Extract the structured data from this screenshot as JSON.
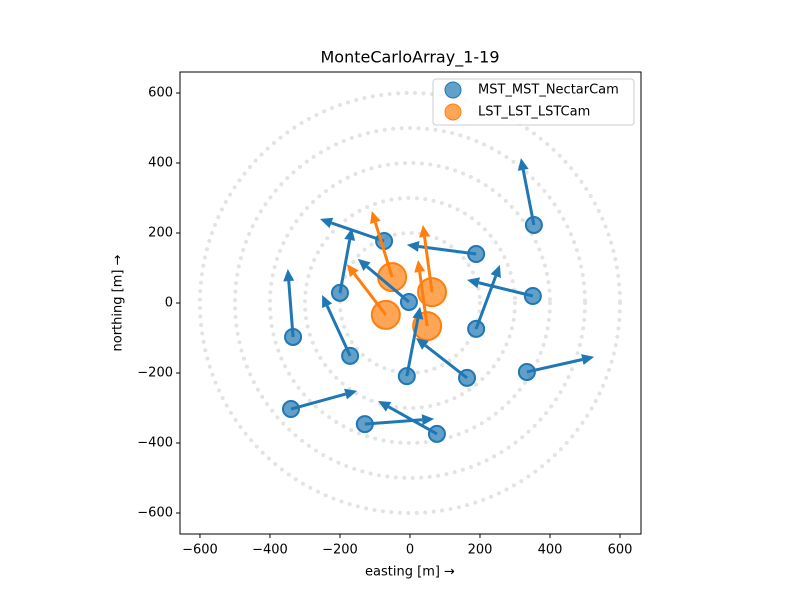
{
  "chart_data": {
    "type": "quiver-scatter",
    "title": "MonteCarloArray_1-19",
    "x_label": "easting [m] →",
    "y_label": "northing [m] →",
    "xlim": [
      -657,
      660
    ],
    "ylim": [
      -660,
      660
    ],
    "xticks": [
      {
        "value": -600,
        "label": "−600"
      },
      {
        "value": -400,
        "label": "−400"
      },
      {
        "value": -200,
        "label": "−200"
      },
      0,
      200,
      400,
      600
    ],
    "yticks": [
      {
        "value": -600,
        "label": "−600"
      },
      {
        "value": -400,
        "label": "−400"
      },
      {
        "value": -200,
        "label": "−200"
      },
      0,
      200,
      400,
      600
    ],
    "rings": [
      200,
      300,
      400,
      500,
      600
    ],
    "legend": "upper right",
    "series": [
      {
        "name": "MST_MST_NectarCam",
        "color": "#1f77b4",
        "x": [
          354,
          -74,
          -200,
          -3,
          189,
          351,
          189,
          -334,
          -171,
          -9,
          163,
          334,
          -340,
          -129,
          77
        ],
        "y": [
          223,
          177,
          29,
          3,
          140,
          20,
          -74,
          -97,
          -151,
          -209,
          -214,
          -197,
          -303,
          -346,
          -374
        ],
        "u": [
          -37,
          -183,
          34,
          -146,
          -198,
          -188,
          68,
          -15,
          -80,
          38,
          -146,
          192,
          189,
          198,
          -168
        ],
        "v": [
          191,
          63,
          185,
          123,
          26,
          46,
          183,
          194,
          174,
          198,
          114,
          43,
          52,
          15,
          94
        ]
      },
      {
        "name": "LST_LST_LSTCam",
        "color": "#ff7f0e",
        "x": [
          -51,
          -69,
          63,
          49
        ],
        "y": [
          74,
          -34,
          31,
          -66
        ],
        "u": [
          -58,
          -111,
          -26,
          -26
        ],
        "v": [
          189,
          145,
          192,
          189
        ]
      }
    ]
  }
}
